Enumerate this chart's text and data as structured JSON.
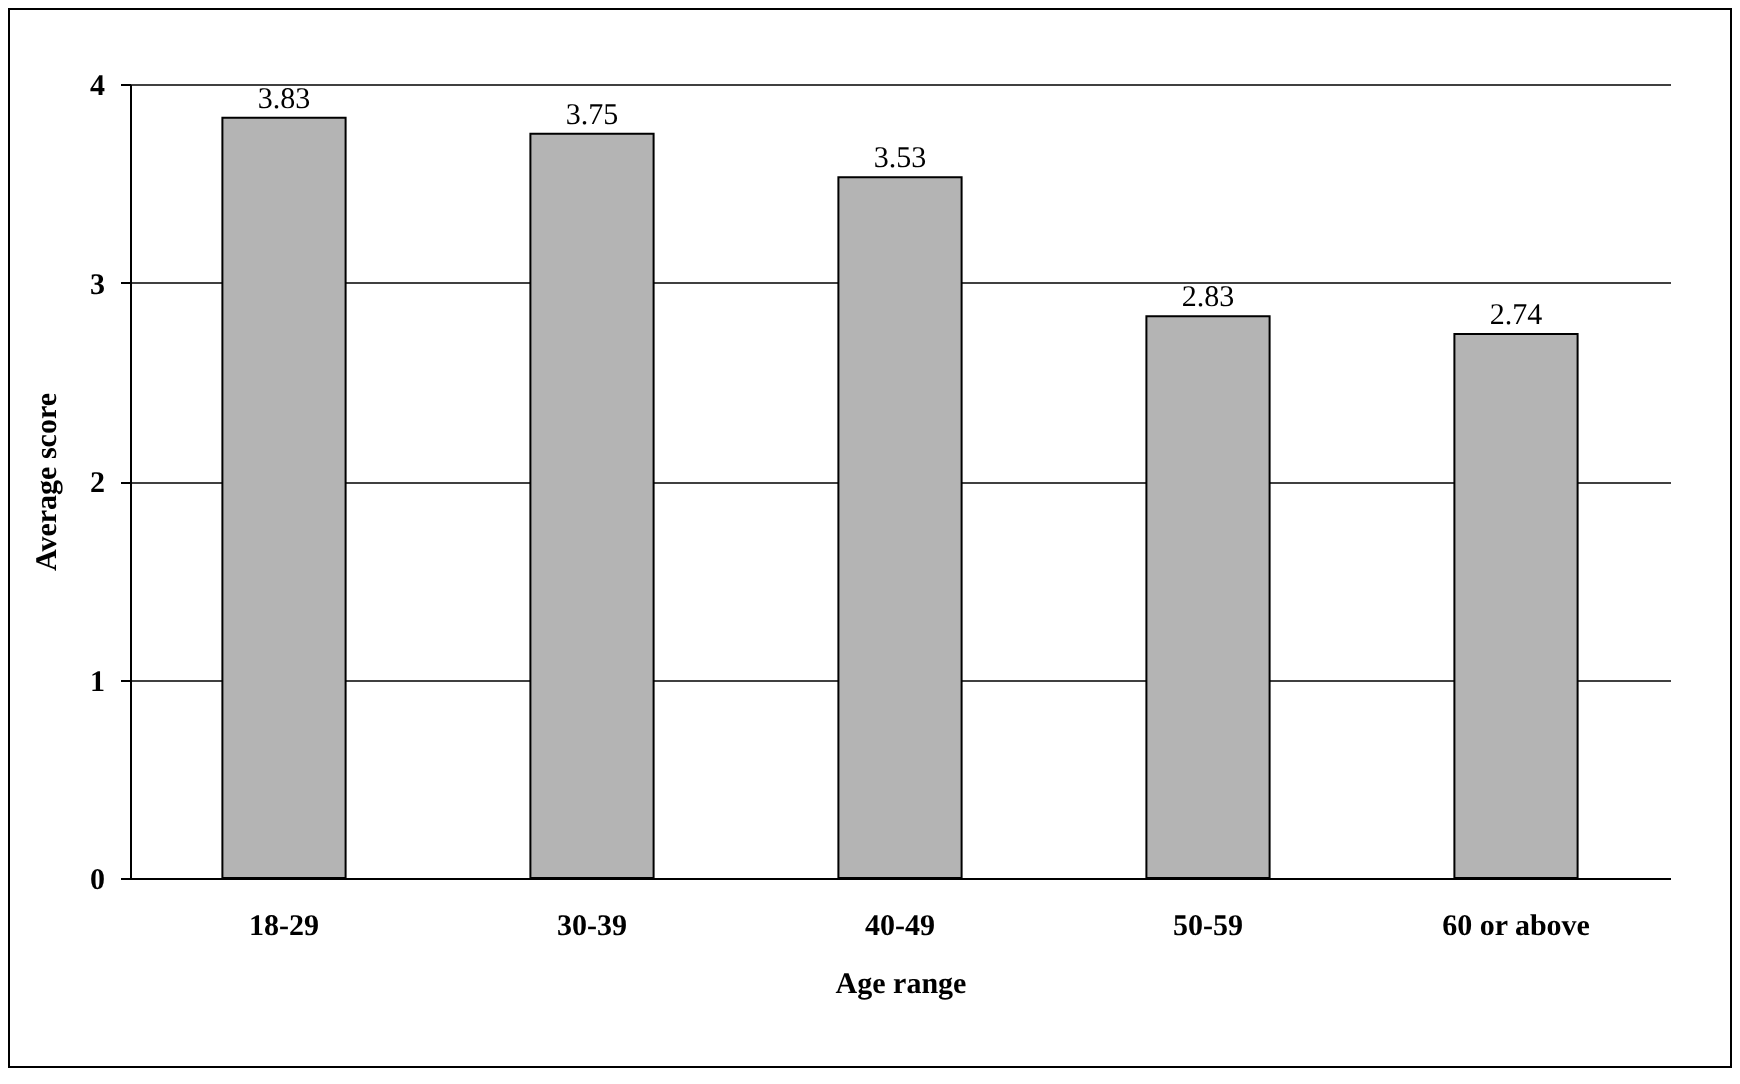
{
  "chart_data": {
    "type": "bar",
    "xlabel": "Age range",
    "ylabel": "Average score",
    "categories": [
      "18-29",
      "30-39",
      "40-49",
      "50-59",
      "60 or above"
    ],
    "values": [
      3.83,
      3.75,
      3.53,
      2.83,
      2.74
    ],
    "color": "#b4b4b4",
    "ylim": [
      0,
      4
    ],
    "yticks": [
      0,
      1,
      2,
      3,
      4
    ],
    "grid": "y",
    "data_labels": true
  }
}
